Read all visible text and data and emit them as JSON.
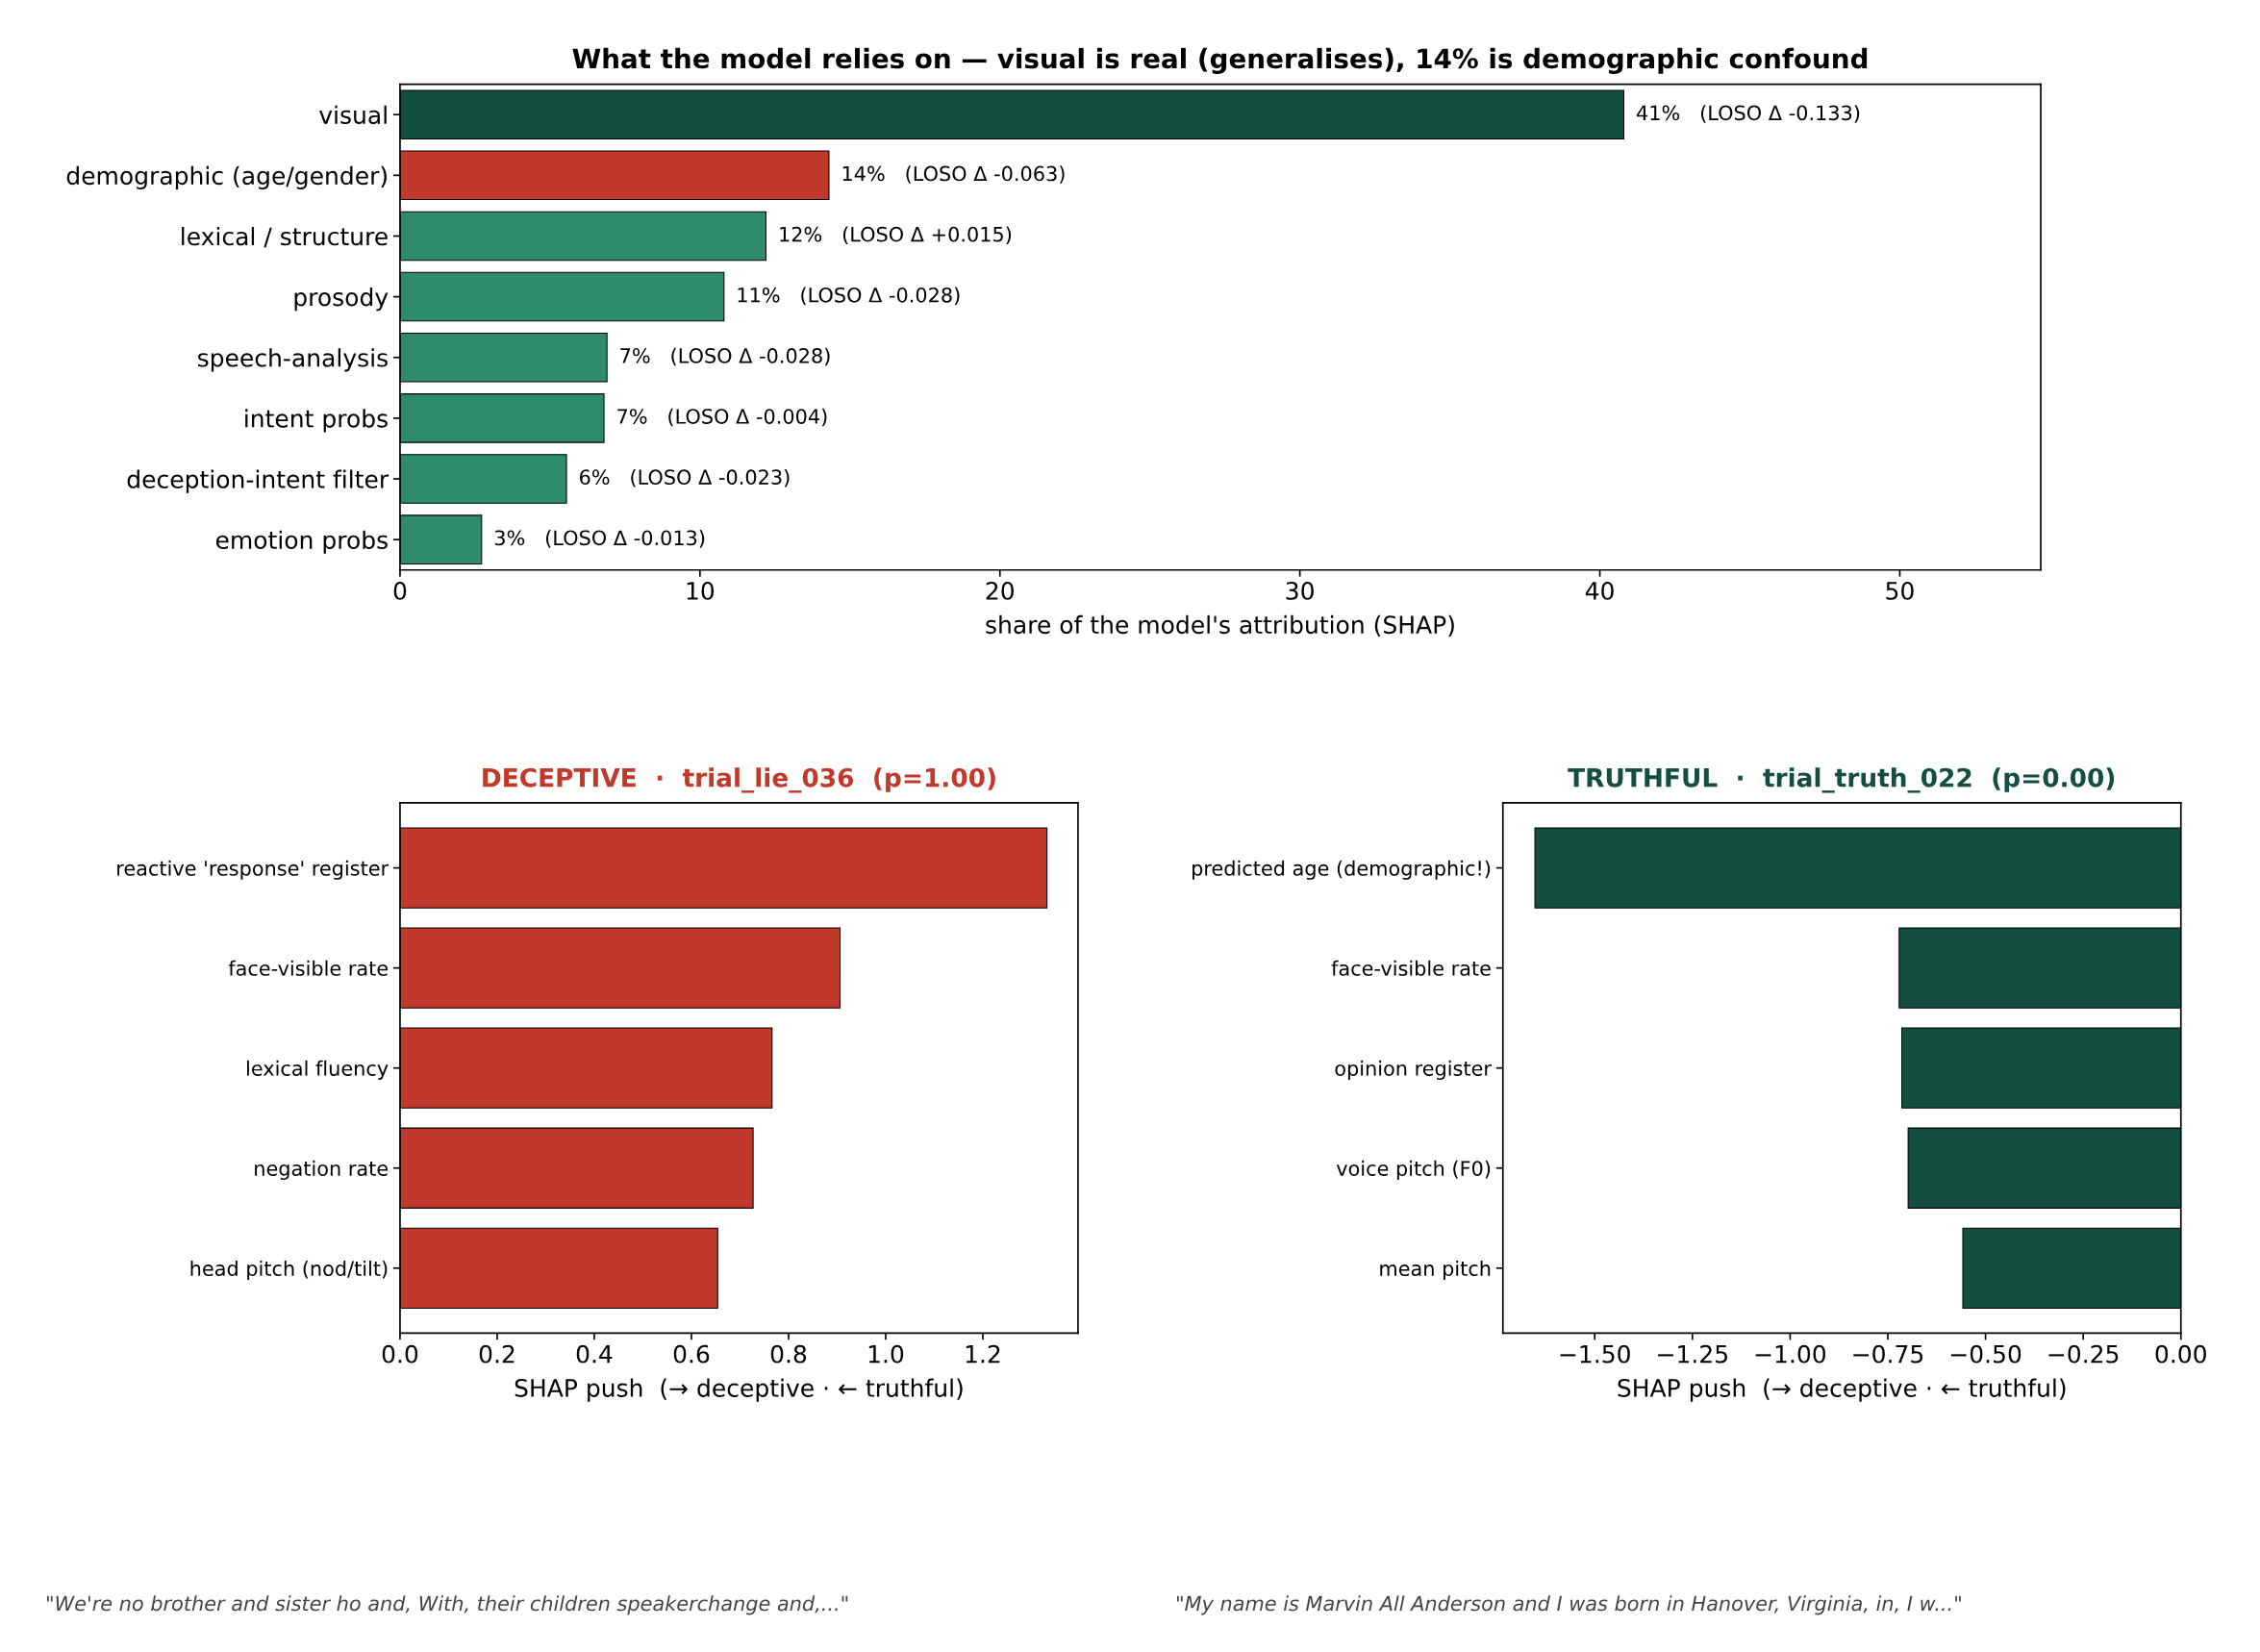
{
  "chart_data": [
    {
      "type": "bar",
      "orientation": "horizontal",
      "title": "What the model relies on — visual is real (generalises), 14% is demographic confound",
      "xlabel": "share of the model's attribution (SHAP)",
      "categories": [
        "visual",
        "demographic (age/gender)",
        "lexical / structure",
        "prosody",
        "speech-analysis",
        "intent probs",
        "deception-intent filter",
        "emotion probs"
      ],
      "values": [
        40.8,
        14.3,
        12.2,
        10.8,
        6.9,
        6.8,
        5.55,
        2.72
      ],
      "colors": [
        "#134e40",
        "#c0392b",
        "#2e8b6e",
        "#2e8b6e",
        "#2e8b6e",
        "#2e8b6e",
        "#2e8b6e",
        "#2e8b6e"
      ],
      "value_labels": [
        "41%   (LOSO Δ -0.133)",
        "14%   (LOSO Δ -0.063)",
        "12%   (LOSO Δ +0.015)",
        "11%   (LOSO Δ -0.028)",
        "7%   (LOSO Δ -0.028)",
        "7%   (LOSO Δ -0.004)",
        "6%   (LOSO Δ -0.023)",
        "3%   (LOSO Δ -0.013)"
      ],
      "xlim": [
        0,
        54.7
      ],
      "xticks": [
        0,
        10,
        20,
        30,
        40,
        50
      ],
      "grid": false,
      "legend": false
    },
    {
      "type": "bar",
      "orientation": "horizontal",
      "title": "DECEPTIVE  ·  trial_lie_036  (p=1.00)",
      "xlabel": "SHAP push  (→ deceptive · ← truthful)",
      "categories": [
        "reactive 'response' register",
        "face-visible rate",
        "lexical fluency",
        "negation rate",
        "head pitch (nod/tilt)"
      ],
      "series": [
        {
          "color": "#c0392b",
          "values": [
            1.332,
            0.906,
            0.766,
            0.727,
            0.654
          ]
        }
      ],
      "xlim": [
        0,
        1.396
      ],
      "xticks": [
        {
          "value": 0,
          "label": "0.0"
        },
        0.2,
        0.4,
        0.6,
        0.8,
        {
          "value": 1,
          "label": "1.0"
        },
        1.2
      ],
      "grid": false,
      "legend": false,
      "annotations": [
        "\"We're no brother and sister ho and, With, their children speakerchange and,...\""
      ]
    },
    {
      "type": "bar",
      "orientation": "horizontal",
      "title": "TRUTHFUL  ·  trial_truth_022  (p=0.00)",
      "xlabel": "SHAP push  (→ deceptive · ← truthful)",
      "categories": [
        "predicted age (demographic!)",
        "face-visible rate",
        "opinion register",
        "voice pitch (F0)",
        "mean pitch"
      ],
      "series": [
        {
          "color": "#134e40",
          "values": [
            -1.653,
            -0.721,
            -0.714,
            -0.698,
            -0.558
          ]
        }
      ],
      "xlim": [
        -1.735,
        0
      ],
      "xticks": [
        {
          "value": -1.5,
          "label": "−1.50"
        },
        {
          "value": -1.25,
          "label": "−1.25"
        },
        {
          "value": -1,
          "label": "−1.00"
        },
        {
          "value": -0.75,
          "label": "−0.75"
        },
        {
          "value": -0.5,
          "label": "−0.50"
        },
        {
          "value": -0.25,
          "label": "−0.25"
        },
        {
          "value": 0,
          "label": "0.00"
        }
      ],
      "grid": false,
      "legend": false,
      "annotations": [
        "\"My name is Marvin All Anderson and I was born in Hanover, Virginia, in, I w...\""
      ]
    }
  ]
}
